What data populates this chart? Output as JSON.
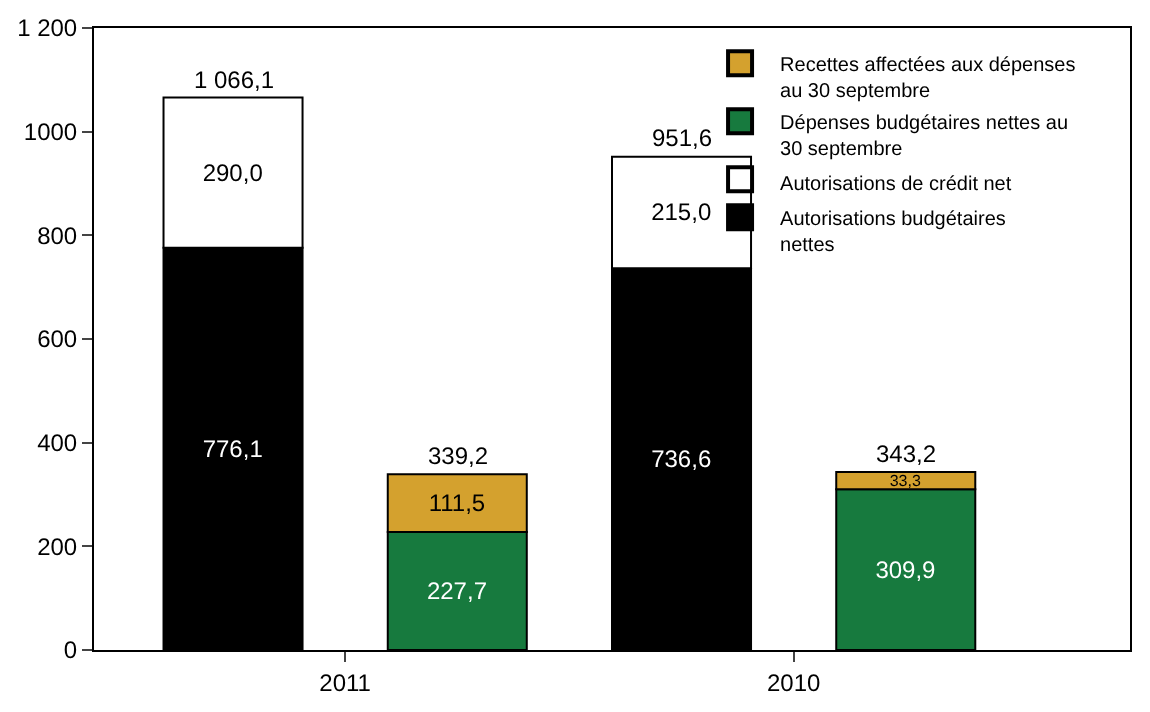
{
  "chart_data": {
    "type": "bar",
    "stacked": true,
    "categories": [
      "2011",
      null,
      "2010",
      null
    ],
    "series": [
      {
        "name": "Autorisations budgétaires nettes",
        "color": "#000000",
        "values": [
          776.1,
          null,
          736.6,
          null
        ],
        "value_labels": [
          "776,1",
          null,
          "736,6",
          null
        ]
      },
      {
        "name": "Autorisations de crédit net",
        "color": "#ffffff",
        "values": [
          290.0,
          null,
          215.0,
          null
        ],
        "value_labels": [
          "290,0",
          null,
          "215,0",
          null
        ]
      },
      {
        "name": "Dépenses budgétaires nettes au 30 septembre",
        "color": "#177a3e",
        "values": [
          null,
          227.7,
          null,
          309.9
        ],
        "value_labels": [
          null,
          "227,7",
          null,
          "309,9"
        ]
      },
      {
        "name": "Recettes affectées aux dépenses au 30 septembre",
        "color": "#d4a12e",
        "values": [
          null,
          111.5,
          null,
          33.3
        ],
        "value_labels": [
          null,
          "111,5",
          null,
          "33,3"
        ]
      }
    ],
    "totals": [
      "1 066,1",
      "339,2",
      "951,6",
      "343,2"
    ],
    "ylim": [
      0,
      1200
    ],
    "yticks": [
      0,
      200,
      400,
      600,
      800,
      1000,
      {
        "value": 1200,
        "label": "1 200"
      }
    ],
    "legend": "top right"
  }
}
